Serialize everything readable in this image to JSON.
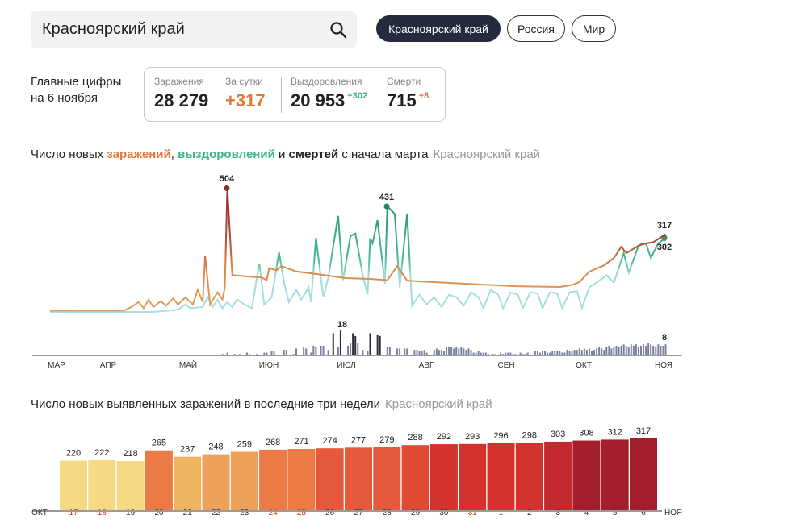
{
  "search": {
    "value": "Красноярский край",
    "icon": "search-icon"
  },
  "regions": [
    {
      "label": "Красноярский край",
      "active": true
    },
    {
      "label": "Россия",
      "active": false
    },
    {
      "label": "Мир",
      "active": false
    }
  ],
  "summary": {
    "label_line1": "Главные цифры",
    "label_line2": "на 6 ноября",
    "infections_label": "Заражения",
    "infections": "28 279",
    "daily_label": "За сутки",
    "daily": "+317",
    "recovered_label": "Выздоровления",
    "recovered": "20 953",
    "recovered_delta": "+302",
    "deaths_label": "Смерти",
    "deaths": "715",
    "deaths_delta": "+8"
  },
  "colors": {
    "infection": "#e07a3a",
    "recovery": "#3db48a",
    "accent_dark": "#252a3f",
    "weekend": "#c0392b"
  },
  "chart1": {
    "t1": "Число новых ",
    "t2": "заражений",
    ",": ", ",
    "t3": "выздоровлений",
    "t4": " и ",
    "t5": "смертей",
    "t6": " с начала марта",
    "region": "Красноярский край"
  },
  "chart2": {
    "title": "Число новых выявленных заражений в последние три недели",
    "region": "Красноярский край"
  },
  "chart_data": [
    {
      "type": "line",
      "title": "Число новых заражений, выздоровлений и смертей с начала марта",
      "x_unit": "days since 1 March",
      "months": [
        "МАР",
        "АПР",
        "МАЙ",
        "ИЮН",
        "ИЮЛ",
        "АВГ",
        "СЕН",
        "ОКТ",
        "НОЯ"
      ],
      "annotations": {
        "infections_peak": "504",
        "recoveries_peak": "431",
        "infections_last": "317",
        "recoveries_last": "302",
        "deaths_peak": "18",
        "deaths_last": "8"
      },
      "infections": [
        [
          0,
          5
        ],
        [
          30,
          5
        ],
        [
          33,
          20
        ],
        [
          36,
          40
        ],
        [
          38,
          15
        ],
        [
          40,
          50
        ],
        [
          42,
          20
        ],
        [
          45,
          45
        ],
        [
          47,
          25
        ],
        [
          50,
          55
        ],
        [
          52,
          30
        ],
        [
          55,
          60
        ],
        [
          58,
          30
        ],
        [
          60,
          90
        ],
        [
          62,
          40
        ],
        [
          63,
          228
        ],
        [
          65,
          30
        ],
        [
          68,
          80
        ],
        [
          70,
          50
        ],
        [
          71,
          100
        ],
        [
          72,
          504
        ],
        [
          74,
          150
        ],
        [
          80,
          145
        ],
        [
          86,
          140
        ],
        [
          88,
          130
        ],
        [
          89,
          178
        ],
        [
          92,
          170
        ],
        [
          94,
          187
        ],
        [
          100,
          165
        ],
        [
          108,
          155
        ],
        [
          120,
          138
        ],
        [
          130,
          135
        ],
        [
          137,
          130
        ],
        [
          141,
          187
        ],
        [
          145,
          128
        ],
        [
          150,
          125
        ],
        [
          163,
          118
        ],
        [
          175,
          112
        ],
        [
          189,
          105
        ],
        [
          207,
          102
        ],
        [
          212,
          110
        ],
        [
          215,
          122
        ],
        [
          219,
          164
        ],
        [
          225,
          190
        ],
        [
          229,
          220
        ],
        [
          232,
          266
        ],
        [
          234,
          240
        ],
        [
          240,
          276
        ],
        [
          245,
          285
        ],
        [
          250,
          317
        ]
      ],
      "recoveries": [
        [
          0,
          0
        ],
        [
          42,
          0
        ],
        [
          48,
          5
        ],
        [
          52,
          10
        ],
        [
          55,
          30
        ],
        [
          57,
          15
        ],
        [
          62,
          20
        ],
        [
          64,
          60
        ],
        [
          66,
          20
        ],
        [
          68,
          50
        ],
        [
          70,
          15
        ],
        [
          72,
          40
        ],
        [
          74,
          20
        ],
        [
          76,
          50
        ],
        [
          79,
          30
        ],
        [
          82,
          15
        ],
        [
          84,
          140
        ],
        [
          85,
          197
        ],
        [
          87,
          30
        ],
        [
          90,
          60
        ],
        [
          93,
          243
        ],
        [
          95,
          120
        ],
        [
          97,
          40
        ],
        [
          100,
          90
        ],
        [
          102,
          50
        ],
        [
          105,
          100
        ],
        [
          106,
          40
        ],
        [
          108,
          302
        ],
        [
          111,
          60
        ],
        [
          113,
          140
        ],
        [
          117,
          392
        ],
        [
          119,
          130
        ],
        [
          120,
          190
        ],
        [
          122,
          310
        ],
        [
          124,
          320
        ],
        [
          127,
          150
        ],
        [
          129,
          70
        ],
        [
          130,
          300
        ],
        [
          131,
          280
        ],
        [
          133,
          375
        ],
        [
          136,
          115
        ],
        [
          137,
          431
        ],
        [
          140,
          400
        ],
        [
          142,
          100
        ],
        [
          145,
          400
        ],
        [
          147,
          25
        ],
        [
          150,
          70
        ],
        [
          153,
          30
        ],
        [
          156,
          60
        ],
        [
          159,
          20
        ],
        [
          162,
          70
        ],
        [
          165,
          60
        ],
        [
          168,
          25
        ],
        [
          171,
          80
        ],
        [
          174,
          60
        ],
        [
          176,
          15
        ],
        [
          179,
          90
        ],
        [
          182,
          70
        ],
        [
          184,
          15
        ],
        [
          187,
          80
        ],
        [
          190,
          70
        ],
        [
          192,
          15
        ],
        [
          195,
          80
        ],
        [
          198,
          75
        ],
        [
          200,
          15
        ],
        [
          203,
          80
        ],
        [
          206,
          75
        ],
        [
          208,
          15
        ],
        [
          211,
          80
        ],
        [
          214,
          85
        ],
        [
          216,
          15
        ],
        [
          219,
          100
        ],
        [
          222,
          120
        ],
        [
          226,
          150
        ],
        [
          229,
          120
        ],
        [
          233,
          240
        ],
        [
          235,
          160
        ],
        [
          239,
          270
        ],
        [
          242,
          280
        ],
        [
          244,
          220
        ],
        [
          247,
          280
        ],
        [
          250,
          302
        ]
      ],
      "deaths_start_day": 70,
      "deaths": [
        1,
        0,
        2,
        0,
        0,
        1,
        0,
        1,
        0,
        0,
        2,
        1,
        0,
        0,
        1,
        0,
        0,
        2,
        2,
        0,
        3,
        3,
        0,
        0,
        0,
        4,
        4,
        0,
        0,
        1,
        5,
        0,
        0,
        6,
        5,
        0,
        2,
        7,
        6,
        0,
        7,
        7,
        0,
        4,
        0,
        16,
        0,
        6,
        18,
        0,
        0,
        7,
        9,
        16,
        14,
        9,
        0,
        4,
        0,
        3,
        16,
        0,
        0,
        15,
        14,
        0,
        0,
        6,
        6,
        0,
        0,
        5,
        5,
        0,
        5,
        5,
        0,
        0,
        4,
        4,
        3,
        3,
        4,
        2,
        0,
        0,
        4,
        5,
        4,
        4,
        3,
        6,
        6,
        6,
        5,
        6,
        5,
        6,
        5,
        4,
        5,
        4,
        2,
        2,
        3,
        2,
        2,
        2,
        1,
        0,
        1,
        1,
        0,
        2,
        1,
        2,
        2,
        2,
        1,
        1,
        0,
        2,
        1,
        1,
        2,
        0,
        0,
        3,
        3,
        2,
        3,
        3,
        2,
        2,
        3,
        3,
        3,
        3,
        2,
        2,
        4,
        3,
        3,
        4,
        4,
        5,
        4,
        5,
        4,
        5,
        3,
        4,
        5,
        6,
        5,
        4,
        6,
        7,
        5,
        6,
        7,
        6,
        7,
        8,
        7,
        6,
        8,
        7,
        8,
        6,
        7,
        8,
        7,
        9,
        8,
        7,
        6,
        8,
        7,
        7,
        8
      ]
    },
    {
      "type": "bar",
      "title": "Число новых выявленных заражений в последние три недели",
      "start_label": "ОКТ",
      "end_label": "НОЯ",
      "categories": [
        "17",
        "18",
        "19",
        "20",
        "21",
        "22",
        "23",
        "24",
        "25",
        "26",
        "27",
        "28",
        "29",
        "30",
        "31",
        "1",
        "2",
        "3",
        "4",
        "5",
        "6"
      ],
      "weekend": [
        true,
        true,
        false,
        false,
        false,
        false,
        false,
        true,
        true,
        false,
        false,
        false,
        false,
        false,
        true,
        true,
        false,
        false,
        false,
        false,
        false
      ],
      "values": [
        220,
        222,
        218,
        265,
        237,
        248,
        259,
        268,
        271,
        274,
        277,
        279,
        288,
        292,
        293,
        296,
        298,
        303,
        308,
        312,
        317
      ]
    }
  ]
}
